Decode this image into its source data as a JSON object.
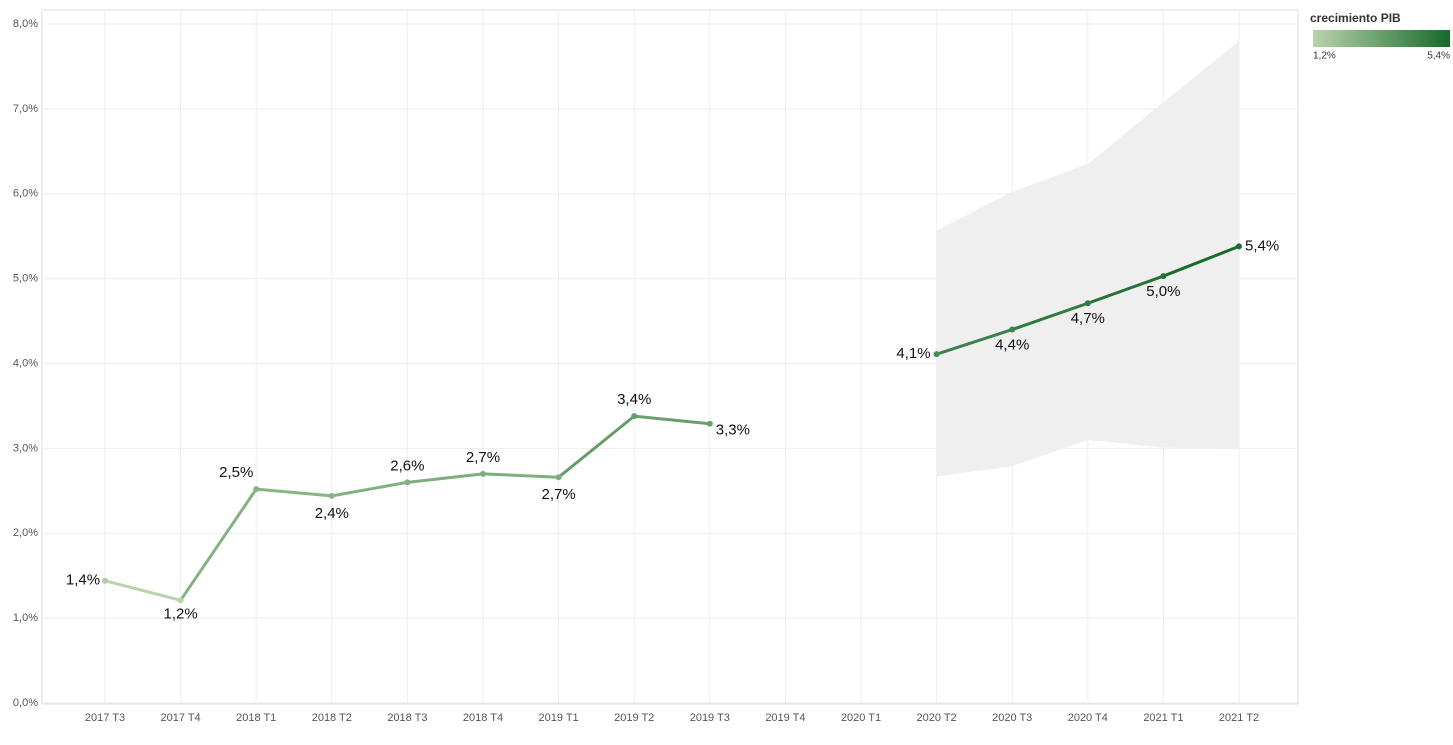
{
  "chart_data": {
    "type": "line",
    "categories": [
      "2017 T3",
      "2017 T4",
      "2018 T1",
      "2018 T2",
      "2018 T3",
      "2018 T4",
      "2019 T1",
      "2019 T2",
      "2019 T3",
      "2019 T4",
      "2020 T1",
      "2020 T2",
      "2020 T3",
      "2020 T4",
      "2021 T1",
      "2021 T2"
    ],
    "values": [
      1.44,
      1.21,
      2.52,
      2.44,
      2.6,
      2.7,
      2.66,
      3.38,
      3.29,
      null,
      null,
      4.11,
      4.4,
      4.71,
      5.03,
      5.38
    ],
    "value_labels": [
      "1,4%",
      "1,2%",
      "2,5%",
      "2,4%",
      "2,6%",
      "2,7%",
      "2,7%",
      "3,4%",
      "3,3%",
      null,
      null,
      "4,1%",
      "4,4%",
      "4,7%",
      "5,0%",
      "5,4%"
    ],
    "band_upper": [
      null,
      null,
      null,
      null,
      null,
      null,
      null,
      null,
      null,
      null,
      null,
      5.57,
      6.02,
      6.35,
      7.08,
      7.8
    ],
    "band_lower": [
      null,
      null,
      null,
      null,
      null,
      null,
      null,
      null,
      null,
      null,
      null,
      2.67,
      2.79,
      3.1,
      3.01,
      2.99
    ],
    "band_color": "#efefef",
    "ylim": [
      0,
      8
    ],
    "yticks": [
      {
        "value": 0,
        "label": "0,0%"
      },
      {
        "value": 1,
        "label": "1,0%"
      },
      {
        "value": 2,
        "label": "2,0%"
      },
      {
        "value": 3,
        "label": "3,0%"
      },
      {
        "value": 4,
        "label": "4,0%"
      },
      {
        "value": 5,
        "label": "5,0%"
      },
      {
        "value": 6,
        "label": "6,0%"
      },
      {
        "value": 7,
        "label": "7,0%"
      },
      {
        "value": 8,
        "label": "8,0%"
      }
    ],
    "grid": true,
    "legend": {
      "title": "crecimiento PIB",
      "min": 1.2,
      "max": 5.4,
      "min_label": "1,2%",
      "max_label": "5,4%",
      "colors": [
        "#b8d4ab",
        "#17692c"
      ]
    }
  }
}
